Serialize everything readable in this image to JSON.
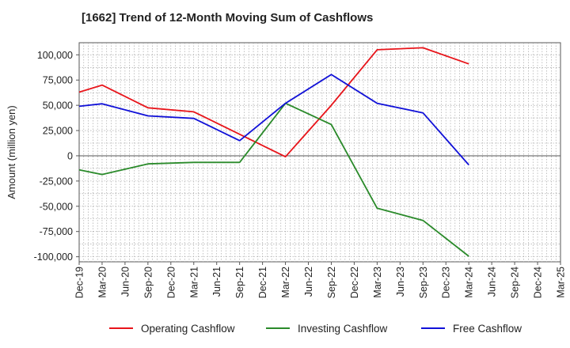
{
  "chart_data": {
    "type": "line",
    "title": "[1662]  Trend of 12-Month Moving Sum of Cashflows",
    "xlabel": "",
    "ylabel": "Amount (million yen)",
    "categories": [
      "Dec-19",
      "Mar-20",
      "Jun-20",
      "Sep-20",
      "Dec-20",
      "Mar-21",
      "Jun-21",
      "Sep-21",
      "Dec-21",
      "Mar-22",
      "Jun-22",
      "Sep-22",
      "Dec-22",
      "Mar-23",
      "Jun-23",
      "Sep-23",
      "Dec-23",
      "Mar-24",
      "Jun-24",
      "Sep-24",
      "Dec-24",
      "Mar-25"
    ],
    "ylim": [
      -105000,
      112000
    ],
    "yticks": [
      -100000,
      -75000,
      -50000,
      -25000,
      0,
      25000,
      50000,
      75000,
      100000
    ],
    "ytick_labels": [
      "-100,000",
      "-75,000",
      "-50,000",
      "-25,000",
      "0",
      "25,000",
      "50,000",
      "75,000",
      "100,000"
    ],
    "grid": true,
    "legend_position": "bottom",
    "series": [
      {
        "name": "Operating Cashflow",
        "color": "#e8141a",
        "values": [
          63000,
          70000,
          null,
          47500,
          null,
          43500,
          null,
          null,
          null,
          -1000,
          null,
          50000,
          null,
          105000,
          null,
          107000,
          null,
          91000,
          null,
          null,
          null,
          null
        ]
      },
      {
        "name": "Investing Cashflow",
        "color": "#2a8a2a",
        "values": [
          -14000,
          -18500,
          null,
          -8000,
          null,
          -6500,
          null,
          -6500,
          null,
          52000,
          null,
          31000,
          null,
          -52000,
          null,
          -64000,
          null,
          -99500,
          null,
          null,
          null,
          null
        ]
      },
      {
        "name": "Free Cashflow",
        "color": "#1010d8",
        "values": [
          49000,
          51500,
          null,
          39500,
          null,
          37000,
          null,
          15000,
          null,
          52000,
          null,
          80500,
          null,
          52000,
          null,
          42500,
          null,
          -9000,
          null,
          null,
          null,
          null
        ]
      }
    ]
  }
}
